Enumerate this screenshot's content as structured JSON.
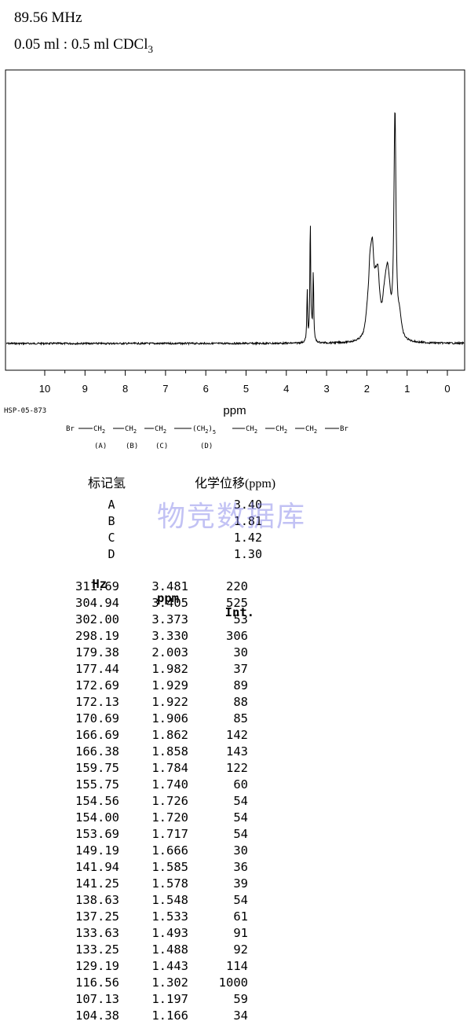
{
  "header": {
    "frequency": "89.56 MHz",
    "solvent_main": "0.05 ml : 0.5 ml CDCl",
    "solvent_sub": "3"
  },
  "chart_data": {
    "type": "line",
    "xlabel": "ppm",
    "xlim": [
      11,
      -0.5
    ],
    "x_reversed": true,
    "ticks": [
      "10",
      "9",
      "8",
      "7",
      "6",
      "5",
      "4",
      "3",
      "2",
      "1",
      "0"
    ],
    "peaks": [
      {
        "ppm": 3.481,
        "int": 220
      },
      {
        "ppm": 3.405,
        "int": 525
      },
      {
        "ppm": 3.373,
        "int": 53
      },
      {
        "ppm": 3.33,
        "int": 306
      },
      {
        "ppm": 2.003,
        "int": 30
      },
      {
        "ppm": 1.982,
        "int": 37
      },
      {
        "ppm": 1.929,
        "int": 89
      },
      {
        "ppm": 1.922,
        "int": 88
      },
      {
        "ppm": 1.906,
        "int": 85
      },
      {
        "ppm": 1.862,
        "int": 142
      },
      {
        "ppm": 1.858,
        "int": 143
      },
      {
        "ppm": 1.784,
        "int": 122
      },
      {
        "ppm": 1.74,
        "int": 60
      },
      {
        "ppm": 1.726,
        "int": 54
      },
      {
        "ppm": 1.72,
        "int": 54
      },
      {
        "ppm": 1.717,
        "int": 54
      },
      {
        "ppm": 1.666,
        "int": 30
      },
      {
        "ppm": 1.585,
        "int": 36
      },
      {
        "ppm": 1.578,
        "int": 39
      },
      {
        "ppm": 1.548,
        "int": 54
      },
      {
        "ppm": 1.533,
        "int": 61
      },
      {
        "ppm": 1.493,
        "int": 91
      },
      {
        "ppm": 1.488,
        "int": 92
      },
      {
        "ppm": 1.443,
        "int": 114
      },
      {
        "ppm": 1.302,
        "int": 1000
      },
      {
        "ppm": 1.197,
        "int": 59
      },
      {
        "ppm": 1.166,
        "int": 34
      }
    ]
  },
  "spectrum_code": "HSP-05-873",
  "structure": {
    "br_left": "Br",
    "groups": [
      "CH",
      "CH",
      "CH",
      "(CH",
      "CH",
      "CH",
      "CH"
    ],
    "sub2": "2",
    "sub5": "5",
    "br_right": "Br",
    "labels": [
      "(A)",
      "(B)",
      "(C)",
      "(D)"
    ]
  },
  "assignments": {
    "col1": "标记氢",
    "col2": "化学位移(ppm)",
    "rows": [
      {
        "label": "A",
        "shift": "3.40"
      },
      {
        "label": "B",
        "shift": "1.81"
      },
      {
        "label": "C",
        "shift": "1.42"
      },
      {
        "label": "D",
        "shift": "1.30"
      }
    ]
  },
  "watermark": "物竞数据库",
  "peak_table": {
    "headers": {
      "hz": "Hz",
      "ppm": "ppm",
      "int": "Int."
    },
    "rows": [
      {
        "hz": "311.69",
        "ppm": "3.481",
        "int": "220"
      },
      {
        "hz": "304.94",
        "ppm": "3.405",
        "int": "525"
      },
      {
        "hz": "302.00",
        "ppm": "3.373",
        "int": "53"
      },
      {
        "hz": "298.19",
        "ppm": "3.330",
        "int": "306"
      },
      {
        "hz": "179.38",
        "ppm": "2.003",
        "int": "30"
      },
      {
        "hz": "177.44",
        "ppm": "1.982",
        "int": "37"
      },
      {
        "hz": "172.69",
        "ppm": "1.929",
        "int": "89"
      },
      {
        "hz": "172.13",
        "ppm": "1.922",
        "int": "88"
      },
      {
        "hz": "170.69",
        "ppm": "1.906",
        "int": "85"
      },
      {
        "hz": "166.69",
        "ppm": "1.862",
        "int": "142"
      },
      {
        "hz": "166.38",
        "ppm": "1.858",
        "int": "143"
      },
      {
        "hz": "159.75",
        "ppm": "1.784",
        "int": "122"
      },
      {
        "hz": "155.75",
        "ppm": "1.740",
        "int": "60"
      },
      {
        "hz": "154.56",
        "ppm": "1.726",
        "int": "54"
      },
      {
        "hz": "154.00",
        "ppm": "1.720",
        "int": "54"
      },
      {
        "hz": "153.69",
        "ppm": "1.717",
        "int": "54"
      },
      {
        "hz": "149.19",
        "ppm": "1.666",
        "int": "30"
      },
      {
        "hz": "141.94",
        "ppm": "1.585",
        "int": "36"
      },
      {
        "hz": "141.25",
        "ppm": "1.578",
        "int": "39"
      },
      {
        "hz": "138.63",
        "ppm": "1.548",
        "int": "54"
      },
      {
        "hz": "137.25",
        "ppm": "1.533",
        "int": "61"
      },
      {
        "hz": "133.63",
        "ppm": "1.493",
        "int": "91"
      },
      {
        "hz": "133.25",
        "ppm": "1.488",
        "int": "92"
      },
      {
        "hz": "129.19",
        "ppm": "1.443",
        "int": "114"
      },
      {
        "hz": "116.56",
        "ppm": "1.302",
        "int": "1000"
      },
      {
        "hz": "107.13",
        "ppm": "1.197",
        "int": "59"
      },
      {
        "hz": "104.38",
        "ppm": "1.166",
        "int": "34"
      }
    ]
  }
}
